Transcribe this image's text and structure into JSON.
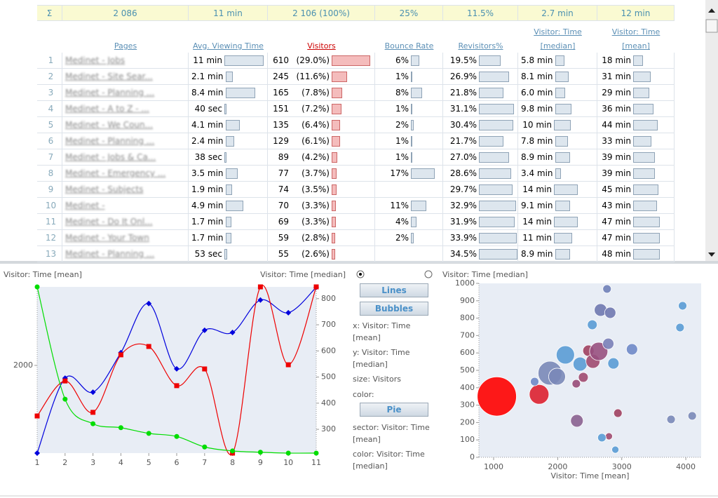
{
  "table": {
    "totals": [
      "Σ",
      "2 086",
      "11 min",
      "2 106 (100%)",
      "25%",
      "11.5%",
      "2.7 min",
      "12 min"
    ],
    "headers": [
      "Pages",
      "Avg. Viewing Time",
      "Visitors",
      "Bounce Rate",
      "Revisitors%",
      "Visitor: Time [median]",
      "Visitor: Time [mean]"
    ],
    "rows": [
      {
        "n": 1,
        "page": "Medinet - Jobs",
        "avg": {
          "value": 11,
          "label": "11 min"
        },
        "visitors": 610,
        "share": "(29.0%)",
        "bounce": {
          "value": 6,
          "label": "6%"
        },
        "revisitors": {
          "value": 19.5,
          "label": "19.5%"
        },
        "median": {
          "value": 5.8,
          "label": "5.8 min"
        },
        "mean": {
          "value": 18,
          "label": "18 min"
        }
      },
      {
        "n": 2,
        "page": "Medinet - Site Sear...",
        "avg": {
          "value": 2.1,
          "label": "2.1 min"
        },
        "visitors": 245,
        "share": "(11.6%)",
        "bounce": {
          "value": 1,
          "label": "1%"
        },
        "revisitors": {
          "value": 26.9,
          "label": "26.9%"
        },
        "median": {
          "value": 8.1,
          "label": "8.1 min"
        },
        "mean": {
          "value": 31,
          "label": "31 min"
        }
      },
      {
        "n": 3,
        "page": "Medinet - Planning ...",
        "avg": {
          "value": 8.4,
          "label": "8.4 min"
        },
        "visitors": 165,
        "share": "(7.8%)",
        "bounce": {
          "value": 8,
          "label": "8%"
        },
        "revisitors": {
          "value": 21.8,
          "label": "21.8%"
        },
        "median": {
          "value": 6.0,
          "label": "6.0 min"
        },
        "mean": {
          "value": 29,
          "label": "29 min"
        }
      },
      {
        "n": 4,
        "page": "Medinet - A to Z - ...",
        "avg": {
          "value": 0.67,
          "label": "40 sec"
        },
        "visitors": 151,
        "share": "(7.2%)",
        "bounce": {
          "value": 1,
          "label": "1%"
        },
        "revisitors": {
          "value": 31.1,
          "label": "31.1%"
        },
        "median": {
          "value": 9.8,
          "label": "9.8 min"
        },
        "mean": {
          "value": 36,
          "label": "36 min"
        }
      },
      {
        "n": 5,
        "page": "Medinet - We Coun...",
        "avg": {
          "value": 4.1,
          "label": "4.1 min"
        },
        "visitors": 135,
        "share": "(6.4%)",
        "bounce": {
          "value": 2,
          "label": "2%"
        },
        "revisitors": {
          "value": 30.4,
          "label": "30.4%"
        },
        "median": {
          "value": 10,
          "label": "10 min"
        },
        "mean": {
          "value": 44,
          "label": "44 min"
        }
      },
      {
        "n": 6,
        "page": "Medinet - Planning ...",
        "avg": {
          "value": 2.4,
          "label": "2.4 min"
        },
        "visitors": 129,
        "share": "(6.1%)",
        "bounce": {
          "value": 1,
          "label": "1%"
        },
        "revisitors": {
          "value": 21.7,
          "label": "21.7%"
        },
        "median": {
          "value": 7.8,
          "label": "7.8 min"
        },
        "mean": {
          "value": 33,
          "label": "33 min"
        }
      },
      {
        "n": 7,
        "page": "Medinet - Jobs & Ca...",
        "avg": {
          "value": 0.63,
          "label": "38 sec"
        },
        "visitors": 89,
        "share": "(4.2%)",
        "bounce": {
          "value": 1,
          "label": "1%"
        },
        "revisitors": {
          "value": 27.0,
          "label": "27.0%"
        },
        "median": {
          "value": 8.9,
          "label": "8.9 min"
        },
        "mean": {
          "value": 39,
          "label": "39 min"
        }
      },
      {
        "n": 8,
        "page": "Medinet - Emergency ...",
        "avg": {
          "value": 3.5,
          "label": "3.5 min"
        },
        "visitors": 77,
        "share": "(3.7%)",
        "bounce": {
          "value": 17,
          "label": "17%"
        },
        "revisitors": {
          "value": 28.6,
          "label": "28.6%"
        },
        "median": {
          "value": 3.4,
          "label": "3.4 min"
        },
        "mean": {
          "value": 39,
          "label": "39 min"
        }
      },
      {
        "n": 9,
        "page": "Medinet - Subjects",
        "avg": {
          "value": 1.9,
          "label": "1.9 min"
        },
        "visitors": 74,
        "share": "(3.5%)",
        "bounce": null,
        "revisitors": {
          "value": 29.7,
          "label": "29.7%"
        },
        "median": {
          "value": 14,
          "label": "14 min"
        },
        "mean": {
          "value": 45,
          "label": "45 min"
        }
      },
      {
        "n": 10,
        "page": "Medinet -",
        "avg": {
          "value": 4.9,
          "label": "4.9 min"
        },
        "visitors": 70,
        "share": "(3.3%)",
        "bounce": {
          "value": 11,
          "label": "11%"
        },
        "revisitors": {
          "value": 32.9,
          "label": "32.9%"
        },
        "median": {
          "value": 9.1,
          "label": "9.1 min"
        },
        "mean": {
          "value": 43,
          "label": "43 min"
        }
      },
      {
        "n": 11,
        "page": "Medinet - Do It Onl...",
        "avg": {
          "value": 1.7,
          "label": "1.7 min"
        },
        "visitors": 69,
        "share": "(3.3%)",
        "bounce": {
          "value": 4,
          "label": "4%"
        },
        "revisitors": {
          "value": 31.9,
          "label": "31.9%"
        },
        "median": {
          "value": 14,
          "label": "14 min"
        },
        "mean": {
          "value": 47,
          "label": "47 min"
        }
      },
      {
        "n": 12,
        "page": "Medinet - Your Town",
        "avg": {
          "value": 1.7,
          "label": "1.7 min"
        },
        "visitors": 59,
        "share": "(2.8%)",
        "bounce": {
          "value": 2,
          "label": "2%"
        },
        "revisitors": {
          "value": 33.9,
          "label": "33.9%"
        },
        "median": {
          "value": 11,
          "label": "11 min"
        },
        "mean": {
          "value": 47,
          "label": "47 min"
        }
      },
      {
        "n": 13,
        "page": "Medinet - Planning ...",
        "avg": {
          "value": 0.88,
          "label": "53 sec"
        },
        "visitors": 55,
        "share": "(2.6%)",
        "bounce": null,
        "revisitors": {
          "value": 34.5,
          "label": "34.5%"
        },
        "median": {
          "value": 8.9,
          "label": "8.9 min"
        },
        "mean": {
          "value": 48,
          "label": "48 min"
        }
      }
    ]
  },
  "controls": {
    "buttons": [
      "Lines",
      "Bubbles",
      "Pie"
    ],
    "fields": [
      [
        "x:",
        "Visitor: Time [mean]"
      ],
      [
        "y:",
        "Visitor: Time [median]"
      ],
      [
        "size:",
        "Visitors"
      ],
      [
        "color:",
        null
      ],
      [
        "sector:",
        "Visitor: Time [mean]"
      ],
      [
        "color:",
        "Visitor: Time [median]"
      ]
    ]
  },
  "chart_data": [
    {
      "type": "line",
      "ylabel": "Visitor: Time [mean]",
      "y2label": "Visitor: Time [median]",
      "x": [
        1,
        2,
        3,
        4,
        5,
        6,
        7,
        8,
        9,
        10,
        11
      ],
      "xlim": [
        1,
        11
      ],
      "xticks": [
        1,
        2,
        3,
        4,
        5,
        6,
        7,
        8,
        9,
        10,
        11
      ],
      "ylim": [
        0,
        3790
      ],
      "yticks": [
        2000
      ],
      "y2lim": [
        209,
        845
      ],
      "y2ticks": [
        300,
        400,
        500,
        600,
        700,
        800
      ],
      "series": [
        {
          "color": "#0000dd",
          "marker": "diamond",
          "values": [
            0,
            1710,
            1390,
            2290,
            3410,
            1920,
            2800,
            2750,
            3490,
            3200,
            3780
          ]
        },
        {
          "color": "#ee0000",
          "marker": "square",
          "axis": "y2",
          "values": [
            351,
            485,
            365,
            585,
            617,
            467,
            531,
            209,
            845,
            547,
            845
          ]
        },
        {
          "color": "#00dd00",
          "marker": "circle",
          "values": [
            3790,
            1230,
            670,
            580,
            450,
            380,
            140,
            50,
            20,
            0,
            0
          ]
        }
      ]
    },
    {
      "type": "bubble",
      "xlabel": "Visitor: Time [mean]",
      "ylabel": "Visitor: Time [median]",
      "xlim": [
        770,
        4240
      ],
      "xticks": [
        1000,
        2000,
        3000,
        4000
      ],
      "ylim": [
        0,
        1000
      ],
      "yticks": [
        0,
        100,
        200,
        300,
        400,
        500,
        600,
        700,
        800,
        900,
        1000
      ],
      "x": [
        1050,
        1710,
        1640,
        1880,
        1990,
        2120,
        2350,
        2480,
        2550,
        2640,
        2670,
        2820,
        2770,
        2540,
        2790,
        2870,
        3160,
        2400,
        2290,
        2300,
        2940,
        2800,
        2690,
        2900,
        3770,
        4100,
        3910,
        3950
      ],
      "values": [
        350,
        362,
        435,
        484,
        464,
        589,
        536,
        613,
        552,
        609,
        847,
        831,
        968,
        762,
        653,
        540,
        621,
        460,
        423,
        210,
        254,
        121,
        113,
        44,
        218,
        238,
        746,
        871
      ],
      "sizes": [
        610,
        153,
        28,
        226,
        113,
        132,
        78,
        50,
        78,
        132,
        63,
        50,
        28,
        38,
        50,
        50,
        50,
        38,
        28,
        63,
        28,
        20,
        28,
        20,
        28,
        28,
        28,
        28
      ],
      "colors": [
        "#ff0000",
        "#dd2030",
        "#6f88c8",
        "#7a88b8",
        "#7a88b8",
        "#5a9bd5",
        "#5a9bd5",
        "#a04060",
        "#a04a70",
        "#985080",
        "#6f78b0",
        "#7078b0",
        "#6f7fb8",
        "#5a9bd5",
        "#7a80b8",
        "#5a9bd5",
        "#6f88c8",
        "#a04a70",
        "#984a78",
        "#8a6090",
        "#a04060",
        "#a04a70",
        "#5a9bd5",
        "#5a9bd5",
        "#7a88b8",
        "#7a88b8",
        "#5a9bd5",
        "#5a9bd5"
      ]
    }
  ]
}
